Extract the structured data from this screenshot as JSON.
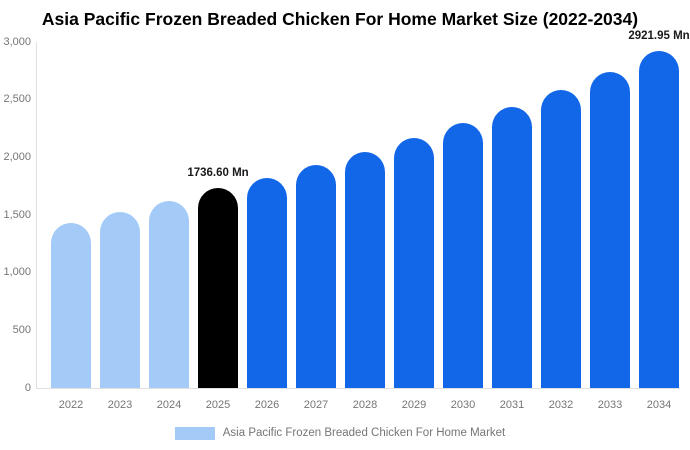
{
  "title": "Asia Pacific Frozen Breaded Chicken For Home Market Size (2022-2034)",
  "legend": {
    "label": "Asia Pacific Frozen Breaded Chicken For Home Market",
    "swatch_color": "#A4CAF8"
  },
  "colors": {
    "past": "#A4CAF8",
    "current": "#000000",
    "forecast": "#1267E8",
    "axis_line": "#E0E0E0",
    "tick_text": "#757575",
    "annotation_text": "#1A1A1A"
  },
  "chart_data": {
    "type": "bar",
    "title": "Asia Pacific Frozen Breaded Chicken For Home Market Size (2022-2034)",
    "series_name": "Asia Pacific Frozen Breaded Chicken For Home Market",
    "unit": "Mn",
    "categories": [
      "2022",
      "2023",
      "2024",
      "2025",
      "2026",
      "2027",
      "2028",
      "2029",
      "2030",
      "2031",
      "2032",
      "2033",
      "2034"
    ],
    "values": [
      1430,
      1525,
      1620,
      1736.6,
      1820,
      1930,
      2050,
      2165,
      2295,
      2435,
      2585,
      2740,
      2921.95
    ],
    "bar_roles": [
      "past",
      "past",
      "past",
      "current",
      "forecast",
      "forecast",
      "forecast",
      "forecast",
      "forecast",
      "forecast",
      "forecast",
      "forecast",
      "forecast"
    ],
    "annotations": [
      {
        "year": "2025",
        "text": "1736.60 Mn"
      },
      {
        "year": "2034",
        "text": "2921.95 Mn"
      }
    ],
    "xlabel": "",
    "ylabel": "",
    "ylim": [
      0,
      3000
    ],
    "y_ticks": [
      0,
      500,
      1000,
      1500,
      2000,
      2500,
      3000
    ],
    "y_tick_labels": [
      "0",
      "500",
      "1,000",
      "1,500",
      "2,000",
      "2,500",
      "3,000"
    ],
    "grid": false,
    "legend_position": "bottom"
  }
}
